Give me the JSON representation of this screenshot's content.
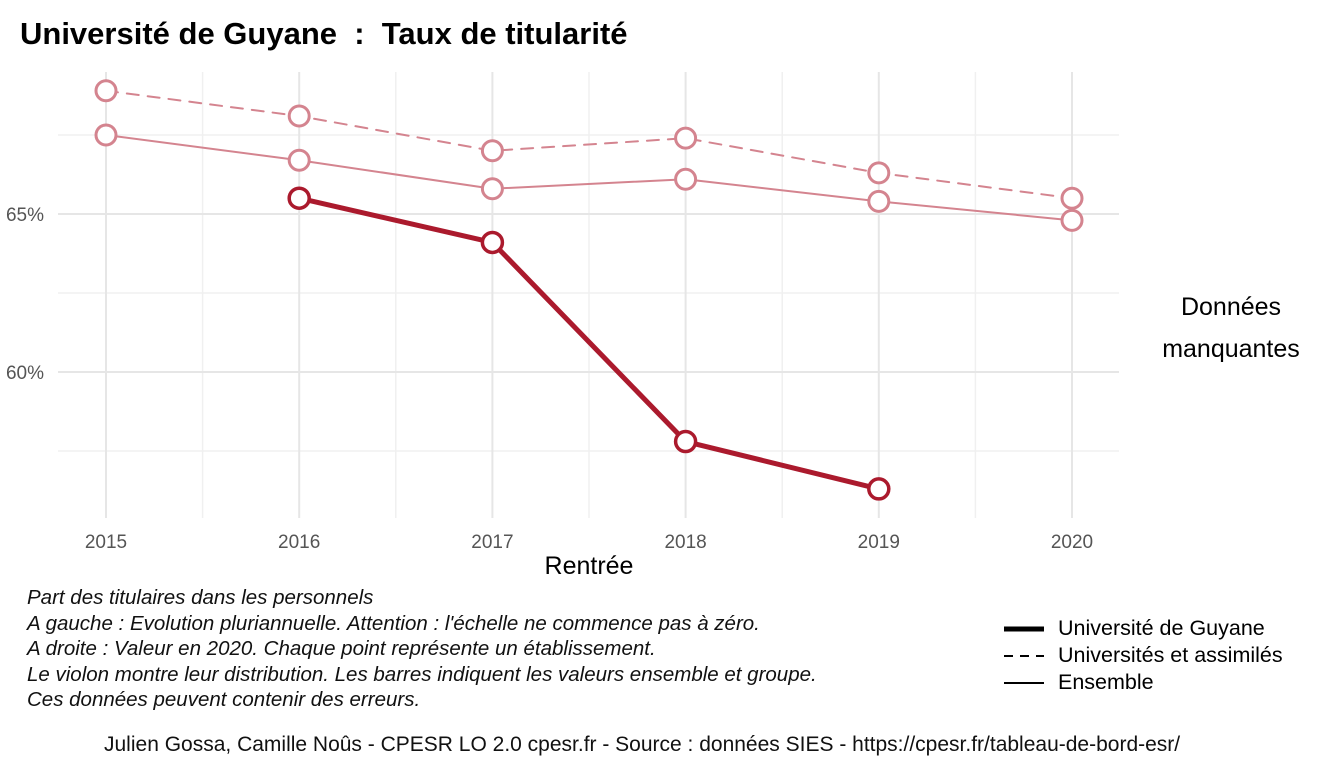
{
  "header": {
    "title": "Université de Guyane  :  Taux de titularité"
  },
  "chart_data": {
    "type": "line",
    "title": "Université de Guyane  :  Taux de titularité",
    "xlabel": "Rentrée",
    "ylabel": "",
    "x": [
      2015,
      2016,
      2017,
      2018,
      2019,
      2020
    ],
    "x_tick_labels": [
      "2015",
      "2016",
      "2017",
      "2018",
      "2019",
      "2020"
    ],
    "y_tick_values": [
      60,
      65
    ],
    "y_tick_labels": [
      "60%",
      "65%"
    ],
    "ylim": [
      55.6,
      69.6
    ],
    "grid": true,
    "legend_position": "bottom-right",
    "series": [
      {
        "name": "Université de Guyane",
        "style": "solid-thick",
        "color": "#ab1a2d",
        "values": [
          null,
          65.5,
          64.1,
          57.8,
          56.3,
          null
        ]
      },
      {
        "name": "Universités et assimilés",
        "style": "dashed",
        "color": "#d4848f",
        "values": [
          68.9,
          68.1,
          67.0,
          67.4,
          66.3,
          65.5
        ]
      },
      {
        "name": "Ensemble",
        "style": "solid-thin",
        "color": "#d4848f",
        "values": [
          67.5,
          66.7,
          65.8,
          66.1,
          65.4,
          64.8
        ]
      }
    ]
  },
  "missing_note": {
    "line1": "Données",
    "line2": "manquantes"
  },
  "caption": {
    "lines": [
      "Part des titulaires dans les personnels",
      "A gauche : Evolution pluriannuelle. Attention : l'échelle ne commence pas à zéro.",
      "A droite : Valeur en 2020. Chaque point représente un établissement.",
      "Le violon montre leur distribution. Les barres indiquent les valeurs ensemble et groupe.",
      "Ces données peuvent contenir des erreurs."
    ]
  },
  "legend": {
    "items": [
      {
        "label": "Université de Guyane",
        "style": "solid-thick"
      },
      {
        "label": "Universités et assimilés",
        "style": "dashed"
      },
      {
        "label": "Ensemble",
        "style": "solid-thin"
      }
    ]
  },
  "credit": "Julien Gossa, Camille Noûs - CPESR LO 2.0 cpesr.fr - Source : données SIES - https://cpesr.fr/tableau-de-bord-esr/"
}
